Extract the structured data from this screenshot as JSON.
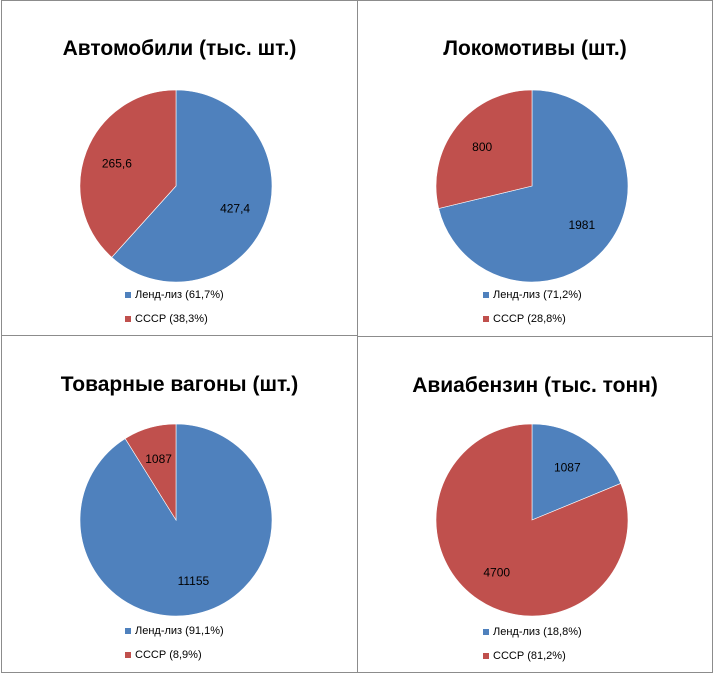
{
  "colors": {
    "lend_lease": "#4F81BD",
    "ussr": "#C0504D"
  },
  "chart_data": [
    {
      "type": "pie",
      "title": "Автомобили (тыс. шт.)",
      "series": [
        {
          "name": "Ленд-лиз",
          "value": 427.4,
          "value_label": "427,4",
          "legend": "Ленд-лиз (61,7%)",
          "color": "#4F81BD"
        },
        {
          "name": "СССР",
          "value": 265.6,
          "value_label": "265,6",
          "legend": "СССР (38,3%)",
          "color": "#C0504D"
        }
      ],
      "legend_position": "bottom"
    },
    {
      "type": "pie",
      "title": "Локомотивы (шт.)",
      "series": [
        {
          "name": "Ленд-лиз",
          "value": 1981,
          "value_label": "1981",
          "legend": "Ленд-лиз (71,2%)",
          "color": "#4F81BD"
        },
        {
          "name": "СССР",
          "value": 800,
          "value_label": "800",
          "legend": "СССР (28,8%)",
          "color": "#C0504D"
        }
      ],
      "legend_position": "bottom"
    },
    {
      "type": "pie",
      "title": "Товарные вагоны (шт.)",
      "series": [
        {
          "name": "Ленд-лиз",
          "value": 11155,
          "value_label": "11155",
          "legend": "Ленд-лиз (91,1%)",
          "color": "#4F81BD"
        },
        {
          "name": "СССР",
          "value": 1087,
          "value_label": "1087",
          "legend": "СССР (8,9%)",
          "color": "#C0504D"
        }
      ],
      "legend_position": "bottom"
    },
    {
      "type": "pie",
      "title": "Авиабензин (тыс. тонн)",
      "series": [
        {
          "name": "Ленд-лиз",
          "value": 1087,
          "value_label": "1087",
          "legend": "Ленд-лиз (18,8%)",
          "color": "#4F81BD"
        },
        {
          "name": "СССР",
          "value": 4700,
          "value_label": "4700",
          "legend": "СССР (81,2%)",
          "color": "#C0504D"
        }
      ],
      "legend_position": "bottom"
    }
  ]
}
